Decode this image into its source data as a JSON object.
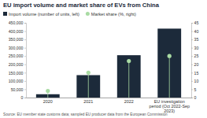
{
  "chart_data": {
    "type": "bar",
    "title": "EU import volume and market share of EVs from China",
    "categories": [
      "2020",
      "2021",
      "2022",
      "EU investigation period (Oct 2022-Sep 2023)"
    ],
    "series": [
      {
        "name": "Import volume (number of units, left)",
        "type": "bar",
        "color": "#1c2a3a",
        "values": [
          20000,
          135000,
          255000,
          415000
        ]
      },
      {
        "name": "Market share (%, right)",
        "type": "lollipop",
        "marker": "circle",
        "axis": "y2",
        "color": "#a9dba3",
        "values": [
          4,
          15,
          22,
          25
        ]
      }
    ],
    "ylim": [
      0,
      450000
    ],
    "yticks": [
      0,
      {
        "value": 50000,
        "label": "50,000"
      },
      {
        "value": 100000,
        "label": "100,000"
      },
      {
        "value": 150000,
        "label": "150,000"
      },
      {
        "value": 200000,
        "label": "200,000"
      },
      {
        "value": 250000,
        "label": "250,000"
      },
      {
        "value": 300000,
        "label": "300,000"
      },
      {
        "value": 350000,
        "label": "350,000"
      },
      {
        "value": 400000,
        "label": "400,000"
      },
      {
        "value": 450000,
        "label": "450,000"
      }
    ],
    "y2lim": [
      0,
      45
    ],
    "y2ticks": [
      0,
      5,
      10,
      15,
      20,
      25,
      30,
      35,
      40,
      45
    ],
    "grid": false,
    "legend": "top-left",
    "annotations": [
      "Source: EU member state customs data; sampled EU producer data from the European Commission"
    ]
  }
}
